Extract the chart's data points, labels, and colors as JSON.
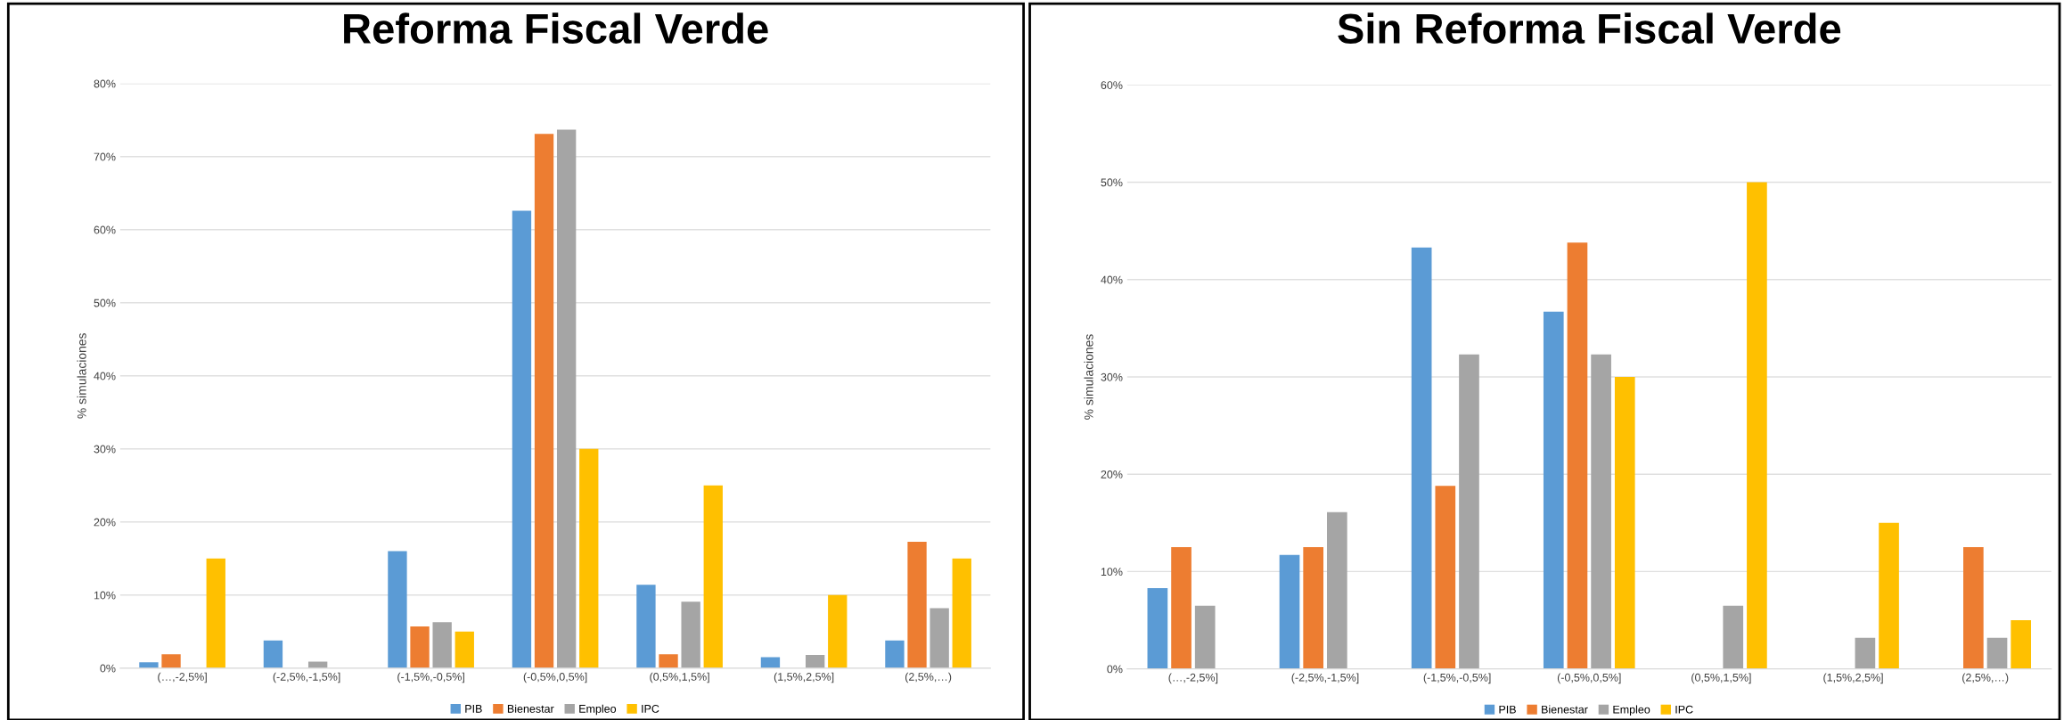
{
  "chart_data": [
    {
      "type": "bar",
      "title": "Reforma Fiscal Verde",
      "ylabel": "% simulaciones",
      "categories": [
        "(…,-2,5%]",
        "(-2,5%,-1,5%]",
        "(-1,5%,-0,5%]",
        "(-0,5%,0,5%]",
        "(0,5%,1,5%]",
        "(1,5%,2,5%]",
        "(2,5%,…)"
      ],
      "series": [
        {
          "name": "PIB",
          "color": "#5b9bd5",
          "values": [
            0.8,
            3.8,
            16,
            62.6,
            11.4,
            1.5,
            3.8
          ]
        },
        {
          "name": "Bienestar",
          "color": "#ed7d31",
          "values": [
            1.9,
            0,
            5.7,
            73.1,
            1.9,
            0,
            17.3
          ]
        },
        {
          "name": "Empleo",
          "color": "#a5a5a5",
          "values": [
            0,
            0.9,
            6.3,
            73.7,
            9.1,
            1.8,
            8.2
          ]
        },
        {
          "name": "IPC",
          "color": "#ffc000",
          "values": [
            15,
            0,
            5,
            30,
            25,
            10,
            15
          ]
        }
      ],
      "ylim": [
        0,
        80
      ],
      "yticks": [
        {
          "value": 0,
          "label": "0%"
        },
        {
          "value": 10,
          "label": "10%"
        },
        {
          "value": 20,
          "label": "20%"
        },
        {
          "value": 30,
          "label": "30%"
        },
        {
          "value": 40,
          "label": "40%"
        },
        {
          "value": 50,
          "label": "50%"
        },
        {
          "value": 60,
          "label": "60%"
        },
        {
          "value": 70,
          "label": "70%"
        },
        {
          "value": 80,
          "label": "80%"
        }
      ],
      "grid": "y",
      "legend": "bottom"
    },
    {
      "type": "bar",
      "title": "Sin Reforma Fiscal Verde",
      "ylabel": "% simulaciones",
      "categories": [
        "(…,-2,5%]",
        "(-2,5%,-1,5%]",
        "(-1,5%,-0,5%]",
        "(-0,5%,0,5%]",
        "(0,5%,1,5%]",
        "(1,5%,2,5%]",
        "(2,5%,…)"
      ],
      "series": [
        {
          "name": "PIB",
          "color": "#5b9bd5",
          "values": [
            8.3,
            11.7,
            43.3,
            36.7,
            0,
            0,
            0
          ]
        },
        {
          "name": "Bienestar",
          "color": "#ed7d31",
          "values": [
            12.5,
            12.5,
            18.8,
            43.8,
            0,
            0,
            12.5
          ]
        },
        {
          "name": "Empleo",
          "color": "#a5a5a5",
          "values": [
            6.5,
            16.1,
            32.3,
            32.3,
            6.5,
            3.2,
            3.2
          ]
        },
        {
          "name": "IPC",
          "color": "#ffc000",
          "values": [
            0,
            0,
            0,
            30,
            50,
            15,
            5
          ]
        }
      ],
      "ylim": [
        0,
        60
      ],
      "yticks": [
        {
          "value": 0,
          "label": "0%"
        },
        {
          "value": 10,
          "label": "10%"
        },
        {
          "value": 20,
          "label": "20%"
        },
        {
          "value": 30,
          "label": "30%"
        },
        {
          "value": 40,
          "label": "40%"
        },
        {
          "value": 50,
          "label": "50%"
        },
        {
          "value": 60,
          "label": "60%"
        }
      ],
      "grid": "y",
      "legend": "bottom"
    }
  ]
}
